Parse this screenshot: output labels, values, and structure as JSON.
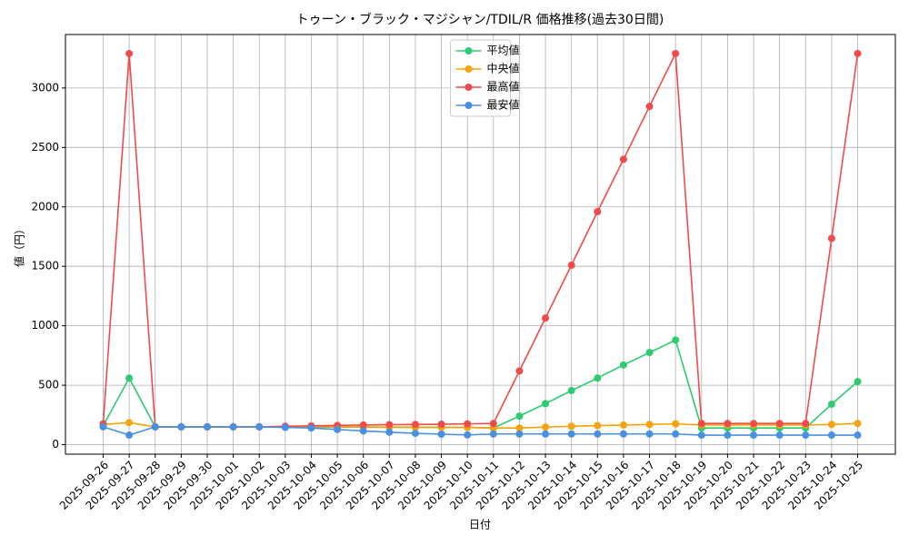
{
  "chart_data": {
    "type": "line",
    "title": "トゥーン・ブラック・マジシャン/TDIL/R 価格推移(過去30日間)",
    "xlabel": "日付",
    "ylabel": "値（円）",
    "x": [
      "2025-09-26",
      "2025-09-27",
      "2025-09-28",
      "2025-09-29",
      "2025-09-30",
      "2025-10-01",
      "2025-10-02",
      "2025-10-03",
      "2025-10-04",
      "2025-10-05",
      "2025-10-06",
      "2025-10-07",
      "2025-10-08",
      "2025-10-09",
      "2025-10-10",
      "2025-10-11",
      "2025-10-12",
      "2025-10-13",
      "2025-10-14",
      "2025-10-15",
      "2025-10-16",
      "2025-10-17",
      "2025-10-18",
      "2025-10-19",
      "2025-10-20",
      "2025-10-21",
      "2025-10-22",
      "2025-10-23",
      "2025-10-24",
      "2025-10-25"
    ],
    "series": [
      {
        "name": "平均値",
        "color": "#2ecc71",
        "values": [
          160,
          560,
          150,
          150,
          150,
          150,
          150,
          150,
          148,
          148,
          147,
          146,
          145,
          145,
          145,
          140,
          240,
          345,
          455,
          560,
          670,
          775,
          880,
          140,
          140,
          140,
          140,
          140,
          340,
          530
        ]
      },
      {
        "name": "中央値",
        "color": "#f5a30a",
        "values": [
          170,
          185,
          150,
          150,
          150,
          150,
          150,
          152,
          152,
          150,
          150,
          148,
          148,
          147,
          145,
          140,
          140,
          148,
          155,
          160,
          165,
          170,
          175,
          165,
          165,
          165,
          165,
          165,
          170,
          178
        ]
      },
      {
        "name": "最高値",
        "color": "#ef4b4b",
        "values": [
          175,
          3290,
          150,
          150,
          150,
          150,
          150,
          155,
          158,
          162,
          165,
          168,
          170,
          172,
          175,
          178,
          620,
          1065,
          1510,
          1960,
          2400,
          2845,
          3290,
          178,
          178,
          178,
          178,
          178,
          1735,
          3290
        ]
      },
      {
        "name": "最安値",
        "color": "#4a90e2",
        "values": [
          150,
          80,
          150,
          150,
          150,
          150,
          150,
          145,
          140,
          128,
          115,
          105,
          95,
          88,
          82,
          90,
          90,
          90,
          90,
          90,
          90,
          90,
          90,
          80,
          80,
          80,
          80,
          80,
          80,
          80
        ]
      }
    ],
    "ylim": [
      -80,
      3450
    ],
    "yticks": [
      0,
      500,
      1000,
      1500,
      2000,
      2500,
      3000
    ],
    "grid": true,
    "legend": "upper center"
  }
}
